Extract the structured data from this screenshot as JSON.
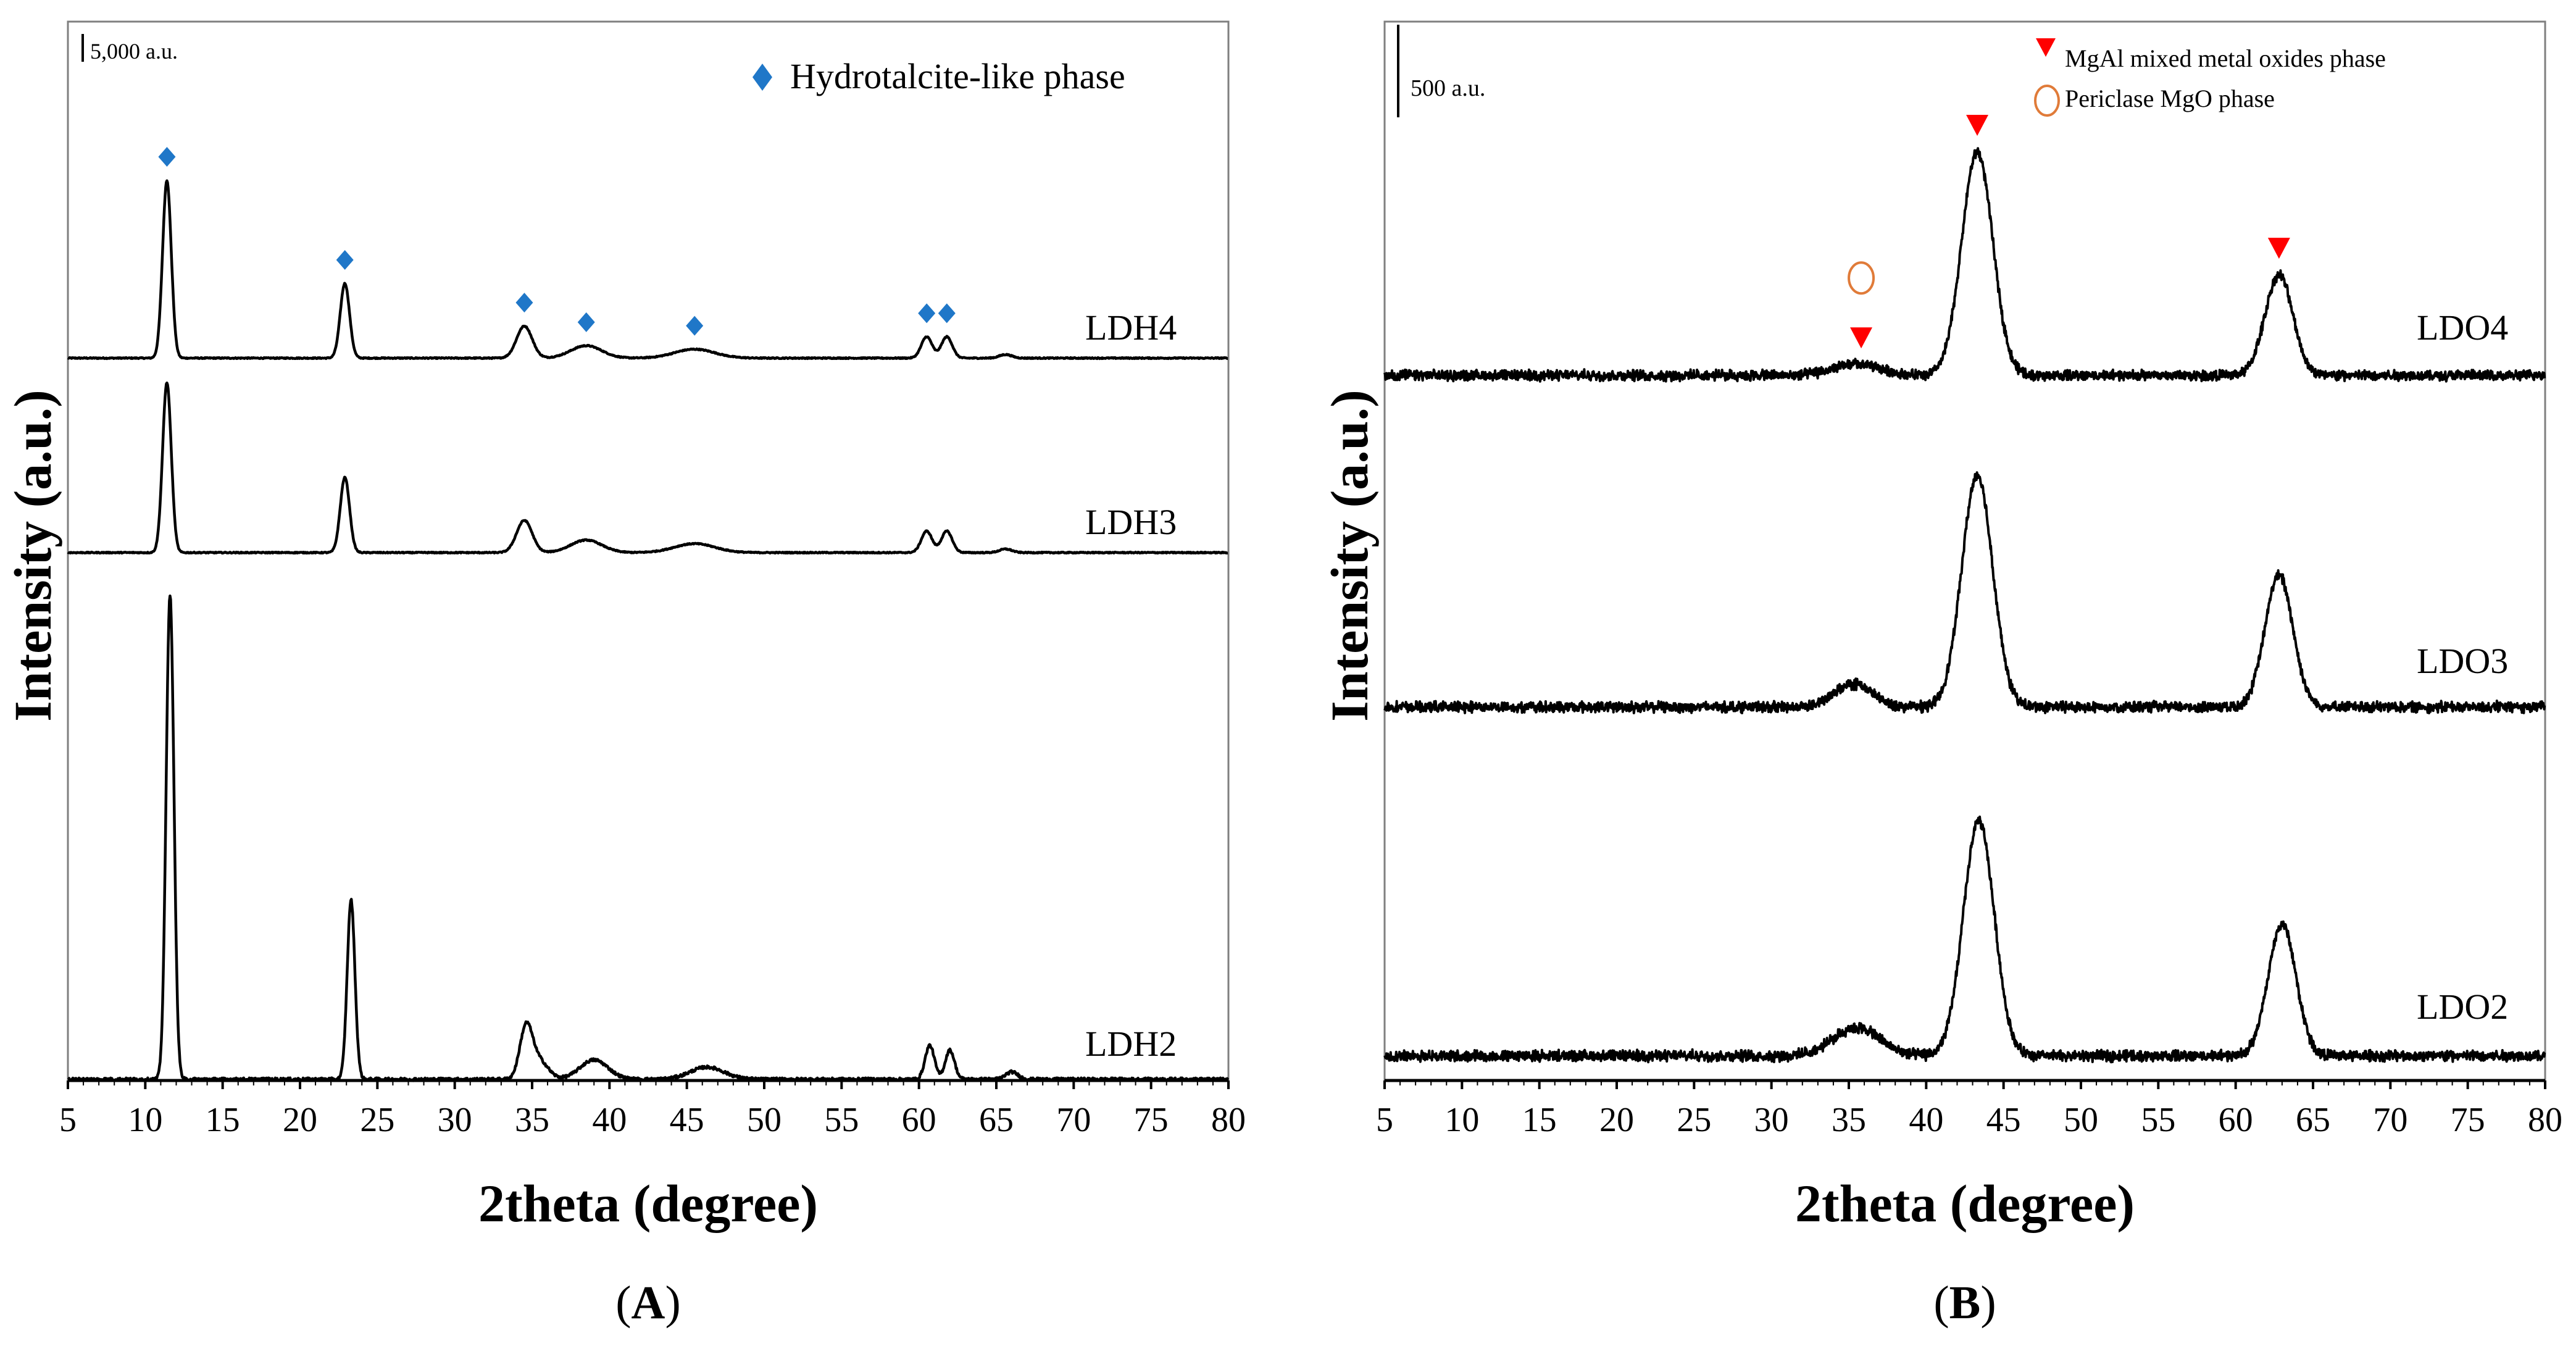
{
  "chart_data": [
    {
      "type": "line",
      "panel": "A",
      "caption_prefix": "(",
      "caption_letter": "A",
      "caption_suffix": ")",
      "xlabel": "2theta (degree)",
      "ylabel": "Intensity (a.u.)",
      "xlim": [
        5,
        80
      ],
      "xticks": [
        5,
        10,
        15,
        20,
        25,
        30,
        35,
        40,
        45,
        50,
        55,
        60,
        65,
        70,
        75,
        80
      ],
      "scale_bar_label": "5,000 a.u.",
      "legend": [
        {
          "marker": "diamond",
          "label": "Hydrotalcite-like phase",
          "color": "#1f77c8"
        }
      ],
      "series": [
        {
          "name": "LDH4",
          "baseline": 0.0,
          "height": 1.0,
          "base_shift": 0.0,
          "peaks": [
            {
              "x": 11.4,
              "h": 1.0,
              "w": 0.28
            },
            {
              "x": 22.9,
              "h": 0.42,
              "w": 0.3
            },
            {
              "x": 34.5,
              "h": 0.18,
              "w": 0.5
            },
            {
              "x": 38.5,
              "h": 0.07,
              "w": 1.0
            },
            {
              "x": 45.5,
              "h": 0.05,
              "w": 1.3
            },
            {
              "x": 60.5,
              "h": 0.12,
              "w": 0.35
            },
            {
              "x": 61.8,
              "h": 0.12,
              "w": 0.35
            },
            {
              "x": 65.6,
              "h": 0.02,
              "w": 0.4
            }
          ],
          "markers": [
            11.4,
            22.9,
            34.5,
            38.5,
            45.5,
            60.5,
            61.8
          ]
        },
        {
          "name": "LDH3",
          "baseline": 0.0,
          "height": 1.0,
          "base_shift": 0.0,
          "peaks": [
            {
              "x": 11.4,
              "h": 0.95,
              "w": 0.28
            },
            {
              "x": 22.9,
              "h": 0.42,
              "w": 0.3
            },
            {
              "x": 34.5,
              "h": 0.18,
              "w": 0.5
            },
            {
              "x": 38.5,
              "h": 0.07,
              "w": 1.0
            },
            {
              "x": 45.5,
              "h": 0.05,
              "w": 1.3
            },
            {
              "x": 60.5,
              "h": 0.12,
              "w": 0.35
            },
            {
              "x": 61.8,
              "h": 0.12,
              "w": 0.35
            },
            {
              "x": 65.6,
              "h": 0.02,
              "w": 0.4
            }
          ],
          "markers": []
        },
        {
          "name": "LDH2",
          "baseline": 0.0,
          "height": 1.0,
          "base_shift": 0.0,
          "peaks": [
            {
              "x": 11.6,
              "h": 1.0,
              "w": 0.25
            },
            {
              "x": 23.3,
              "h": 0.37,
              "w": 0.25
            },
            {
              "x": 34.6,
              "h": 0.1,
              "w": 0.4
            },
            {
              "x": 35.4,
              "h": 0.04,
              "w": 0.6
            },
            {
              "x": 39.0,
              "h": 0.04,
              "w": 0.9
            },
            {
              "x": 46.3,
              "h": 0.025,
              "w": 1.1
            },
            {
              "x": 60.7,
              "h": 0.07,
              "w": 0.3
            },
            {
              "x": 62.0,
              "h": 0.06,
              "w": 0.3
            },
            {
              "x": 66.0,
              "h": 0.015,
              "w": 0.4
            }
          ],
          "markers": []
        }
      ]
    },
    {
      "type": "line",
      "panel": "B",
      "caption_prefix": "(",
      "caption_letter": "B",
      "caption_suffix": ")",
      "xlabel": "2theta (degree)",
      "ylabel": "Intensity (a.u.)",
      "xlim": [
        5,
        80
      ],
      "xticks": [
        5,
        10,
        15,
        20,
        25,
        30,
        35,
        40,
        45,
        50,
        55,
        60,
        65,
        70,
        75,
        80
      ],
      "scale_bar_label": "500 a.u.",
      "legend": [
        {
          "marker": "triangle-down",
          "label": "MgAl mixed metal oxides phase",
          "color": "#ff0000"
        },
        {
          "marker": "circle-open",
          "label": "Periclase MgO phase",
          "color": "#e07b39"
        }
      ],
      "series": [
        {
          "name": "LDO4",
          "peaks": [
            {
              "x": 35.5,
              "h": 0.05,
              "w": 1.5
            },
            {
              "x": 43.3,
              "h": 1.0,
              "w": 1.0
            },
            {
              "x": 62.8,
              "h": 0.45,
              "w": 0.9
            }
          ],
          "triangle_markers": [
            35.8,
            43.3,
            62.8
          ],
          "circle_markers": [
            35.8
          ]
        },
        {
          "name": "LDO3",
          "peaks": [
            {
              "x": 35.3,
              "h": 0.1,
              "w": 1.2
            },
            {
              "x": 43.3,
              "h": 1.0,
              "w": 1.0
            },
            {
              "x": 62.8,
              "h": 0.57,
              "w": 0.9
            }
          ],
          "triangle_markers": [],
          "circle_markers": []
        },
        {
          "name": "LDO2",
          "peaks": [
            {
              "x": 35.5,
              "h": 0.12,
              "w": 1.5
            },
            {
              "x": 43.4,
              "h": 1.0,
              "w": 1.0
            },
            {
              "x": 63.0,
              "h": 0.56,
              "w": 0.9
            }
          ],
          "triangle_markers": [],
          "circle_markers": []
        }
      ]
    }
  ]
}
